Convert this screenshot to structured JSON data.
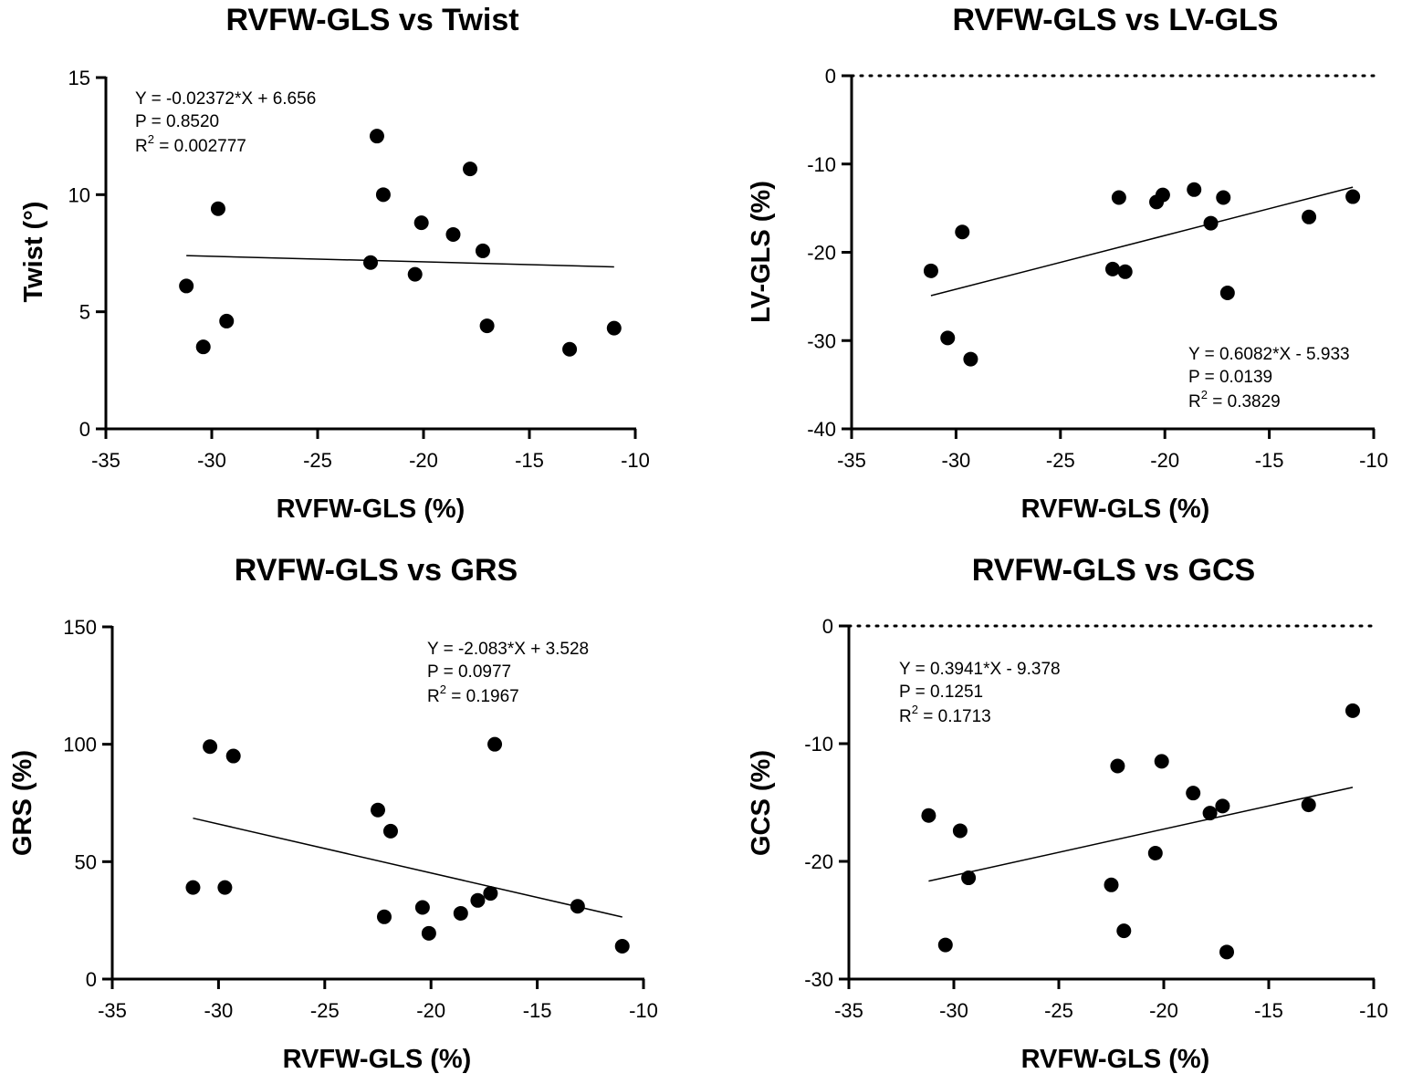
{
  "chart_data": [
    {
      "type": "scatter",
      "title": "RVFW-GLS vs Twist",
      "xlabel": "RVFW-GLS (%)",
      "ylabel": "Twist (°)",
      "xlim": [
        -35,
        -10
      ],
      "ylim": [
        0,
        15
      ],
      "xticks": [
        -35,
        -30,
        -25,
        -20,
        -15,
        -10
      ],
      "yticks": [
        0,
        5,
        10,
        15
      ],
      "xtick_labels": [
        "-35",
        "-30",
        "-25",
        "-20",
        "-15",
        "-10"
      ],
      "ytick_labels": [
        "0",
        "5",
        "10",
        "15"
      ],
      "zero_line": false,
      "annotation": {
        "equation": "Y = -0.02372*X + 6.656",
        "p_value": "P = 0.8520",
        "r2_prefix": "R",
        "r2_sup": "2",
        "r2_value": " = 0.002777",
        "position": "top-left"
      },
      "regression": {
        "slope": -0.02372,
        "intercept": 6.656,
        "x_range": [
          -31.2,
          -11.0
        ]
      },
      "points": {
        "x": [
          -31.2,
          -30.4,
          -29.7,
          -29.3,
          -22.5,
          -22.2,
          -21.9,
          -20.4,
          -20.1,
          -18.6,
          -17.8,
          -17.2,
          -17.0,
          -13.1,
          -11.0
        ],
        "y": [
          6.1,
          3.5,
          9.4,
          4.6,
          7.1,
          12.5,
          10.0,
          6.6,
          8.8,
          8.3,
          11.1,
          7.6,
          4.4,
          3.4,
          4.3
        ]
      }
    },
    {
      "type": "scatter",
      "title": "RVFW-GLS vs LV-GLS",
      "xlabel": "RVFW-GLS (%)",
      "ylabel": "LV-GLS (%)",
      "xlim": [
        -35,
        -10
      ],
      "ylim": [
        -40,
        0
      ],
      "xticks": [
        -35,
        -30,
        -25,
        -20,
        -15,
        -10
      ],
      "yticks": [
        -40,
        -30,
        -20,
        -10,
        0
      ],
      "xtick_labels": [
        "-35",
        "-30",
        "-25",
        "-20",
        "-15",
        "-10"
      ],
      "ytick_labels": [
        "-40",
        "-30",
        "-20",
        "-10",
        "0"
      ],
      "zero_line": true,
      "annotation": {
        "equation": "Y = 0.6082*X - 5.933",
        "p_value": "P = 0.0139",
        "r2_prefix": "R",
        "r2_sup": "2",
        "r2_value": " = 0.3829",
        "position": "bottom-right"
      },
      "regression": {
        "slope": 0.6082,
        "intercept": -5.933,
        "x_range": [
          -31.2,
          -11.0
        ]
      },
      "points": {
        "x": [
          -31.2,
          -30.4,
          -29.7,
          -29.3,
          -22.5,
          -22.2,
          -21.9,
          -20.4,
          -20.1,
          -18.6,
          -17.8,
          -17.2,
          -17.0,
          -13.1,
          -11.0
        ],
        "y": [
          -22.1,
          -29.7,
          -17.7,
          -32.1,
          -21.9,
          -13.8,
          -22.2,
          -14.3,
          -13.5,
          -12.9,
          -16.7,
          -13.8,
          -24.6,
          -16.0,
          -13.7
        ]
      }
    },
    {
      "type": "scatter",
      "title": "RVFW-GLS vs GRS",
      "xlabel": "RVFW-GLS (%)",
      "ylabel": "GRS (%)",
      "xlim": [
        -35,
        -10
      ],
      "ylim": [
        0,
        150
      ],
      "xticks": [
        -35,
        -30,
        -25,
        -20,
        -15,
        -10
      ],
      "yticks": [
        0,
        50,
        100,
        150
      ],
      "xtick_labels": [
        "-35",
        "-30",
        "-25",
        "-20",
        "-15",
        "-10"
      ],
      "ytick_labels": [
        "0",
        "50",
        "100",
        "150"
      ],
      "zero_line": false,
      "annotation": {
        "equation": "Y = -2.083*X + 3.528",
        "p_value": "P = 0.0977",
        "r2_prefix": "R",
        "r2_sup": "2",
        "r2_value": " = 0.1967",
        "position": "top-right"
      },
      "regression": {
        "slope": -2.083,
        "intercept": 3.528,
        "x_range": [
          -31.2,
          -11.0
        ]
      },
      "points": {
        "x": [
          -31.2,
          -30.4,
          -29.7,
          -29.3,
          -22.5,
          -22.2,
          -21.9,
          -20.4,
          -20.1,
          -18.6,
          -17.8,
          -17.2,
          -17.0,
          -13.1,
          -11.0
        ],
        "y": [
          39,
          99,
          39,
          95,
          72,
          26.5,
          63,
          30.5,
          19.5,
          28,
          33.5,
          36.5,
          100,
          31,
          14
        ]
      }
    },
    {
      "type": "scatter",
      "title": "RVFW-GLS vs GCS",
      "xlabel": "RVFW-GLS (%)",
      "ylabel": "GCS (%)",
      "xlim": [
        -35,
        -10
      ],
      "ylim": [
        -30,
        0
      ],
      "xticks": [
        -35,
        -30,
        -25,
        -20,
        -15,
        -10
      ],
      "yticks": [
        -30,
        -20,
        -10,
        0
      ],
      "xtick_labels": [
        "-35",
        "-30",
        "-25",
        "-20",
        "-15",
        "-10"
      ],
      "ytick_labels": [
        "-30",
        "-20",
        "-10",
        "0"
      ],
      "zero_line": true,
      "annotation": {
        "equation": "Y = 0.3941*X - 9.378",
        "p_value": "P = 0.1251",
        "r2_prefix": "R",
        "r2_sup": "2",
        "r2_value": " = 0.1713",
        "position": "top-left"
      },
      "regression": {
        "slope": 0.3941,
        "intercept": -9.378,
        "x_range": [
          -31.2,
          -11.0
        ]
      },
      "points": {
        "x": [
          -31.2,
          -30.4,
          -29.7,
          -29.3,
          -22.5,
          -22.2,
          -21.9,
          -20.4,
          -20.1,
          -18.6,
          -17.8,
          -17.2,
          -17.0,
          -13.1,
          -11.0
        ],
        "y": [
          -16.1,
          -27.1,
          -17.4,
          -21.4,
          -22.0,
          -11.9,
          -25.9,
          -19.3,
          -11.5,
          -14.2,
          -15.9,
          -15.3,
          -27.7,
          -15.2,
          -7.2
        ]
      }
    }
  ]
}
